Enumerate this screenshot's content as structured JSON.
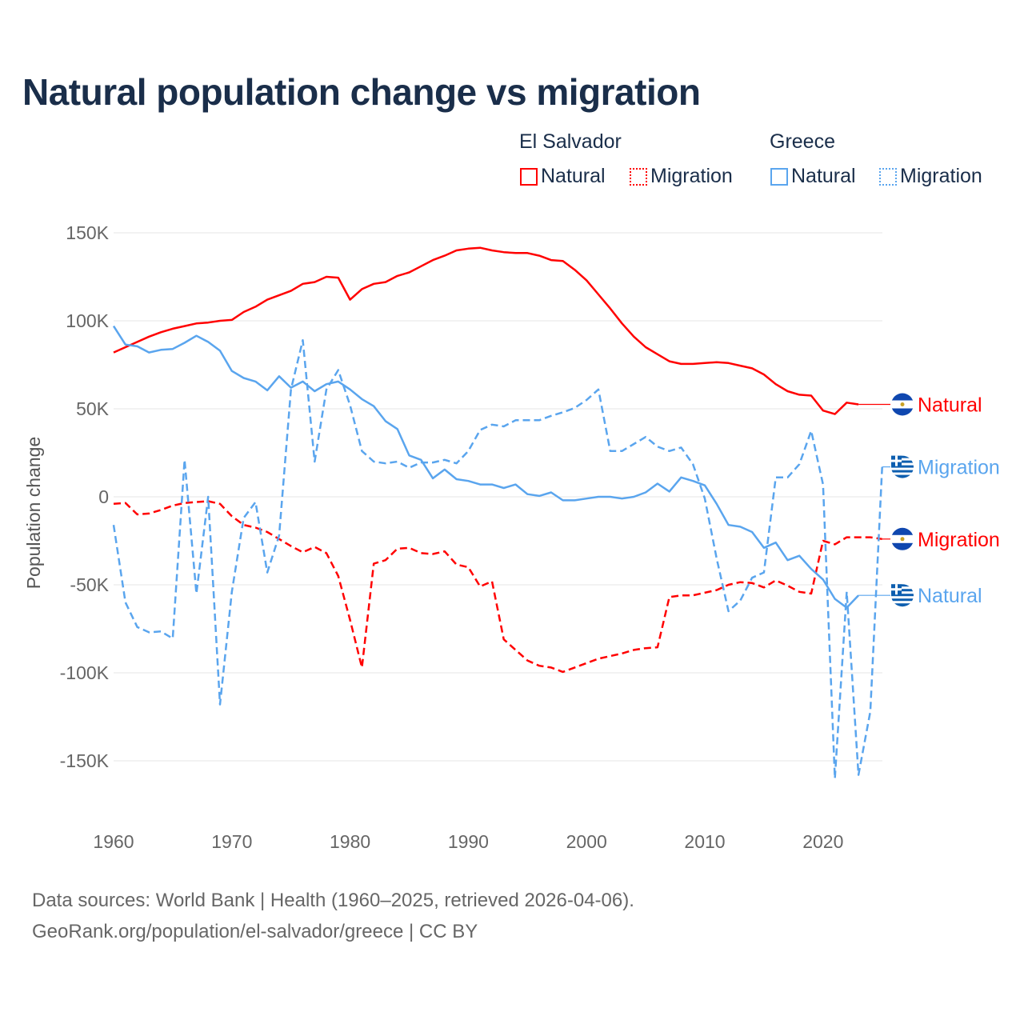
{
  "title": "Natural population change vs migration",
  "legend": {
    "groups": [
      {
        "name": "El Salvador",
        "items": [
          "Natural",
          "Migration"
        ],
        "color": "#ff0000"
      },
      {
        "name": "Greece",
        "items": [
          "Natural",
          "Migration"
        ],
        "color": "#5aa5ee"
      }
    ]
  },
  "footer": {
    "line1": "Data sources: World Bank | Health (1960–2025, retrieved 2026-04-06).",
    "line2": "GeoRank.org/population/el-salvador/greece | CC BY"
  },
  "chart_data": {
    "type": "line",
    "title": "Natural population change vs migration",
    "xlabel": "",
    "ylabel": "Population change",
    "xlim": [
      1960,
      2025
    ],
    "ylim": [
      -170,
      160
    ],
    "y_unit": "thousands",
    "yticks": [
      150,
      100,
      50,
      0,
      -50,
      -100,
      -150
    ],
    "ytick_labels": [
      "150K",
      "100K",
      "50K",
      "0",
      "-50K",
      "-100K",
      "-150K"
    ],
    "xticks": [
      1960,
      1970,
      1980,
      1990,
      2000,
      2010,
      2020
    ],
    "xtick_labels": [
      "1960",
      "1970",
      "1980",
      "1990",
      "2000",
      "2010",
      "2020"
    ],
    "grid": true,
    "series": [
      {
        "name": "El Salvador Natural",
        "label": "Natural",
        "color": "#ff0000",
        "dash": false,
        "start": 1960,
        "values": [
          82,
          85,
          88,
          91,
          93.5,
          95.5,
          97,
          98.5,
          99,
          100,
          100.5,
          105,
          108,
          112,
          114.5,
          117,
          121,
          122,
          125,
          124.5,
          112,
          118,
          121,
          122,
          125.5,
          127.5,
          131,
          134.5,
          137,
          140,
          141,
          141.5,
          140,
          139,
          138.5,
          138.5,
          137,
          134.5,
          134,
          129,
          123,
          115,
          107,
          98.5,
          91,
          85,
          81,
          77,
          75.5,
          75.5,
          76,
          76.5,
          76,
          74.5,
          73,
          69.5,
          64,
          60,
          58,
          57.5,
          49,
          47,
          53.5,
          52.5
        ]
      },
      {
        "name": "El Salvador Migration",
        "label": "Migration",
        "color": "#ff0000",
        "dash": true,
        "start": 1960,
        "values": [
          -4,
          -3.5,
          -10,
          -9.5,
          -7.5,
          -5,
          -3.5,
          -3,
          -2.5,
          -4,
          -11,
          -16,
          -17.5,
          -20,
          -24,
          -28,
          -31.5,
          -28.5,
          -32,
          -45,
          -70,
          -97,
          -38,
          -36,
          -29.5,
          -29,
          -32,
          -32.5,
          -31,
          -38.5,
          -40,
          -51,
          -48,
          -81,
          -87,
          -93,
          -96,
          -97,
          -99.5,
          -97,
          -94.5,
          -92,
          -90.5,
          -89,
          -87,
          -86,
          -85.5,
          -57,
          -56,
          -56,
          -54.5,
          -53,
          -50,
          -48.5,
          -49,
          -51.5,
          -47.5,
          -50.5,
          -54,
          -55,
          -25,
          -27,
          -23,
          -23,
          -23,
          -24
        ]
      },
      {
        "name": "Greece Natural",
        "label": "Natural",
        "color": "#5aa5ee",
        "dash": false,
        "start": 1960,
        "values": [
          97,
          86.5,
          85.5,
          82,
          83.5,
          84,
          87.5,
          91.5,
          88,
          83,
          71.5,
          67.5,
          65.5,
          60.5,
          68.5,
          62,
          65.5,
          60,
          64,
          65.5,
          61,
          55.5,
          51.5,
          43,
          38.5,
          23.5,
          21,
          10.5,
          15.5,
          10,
          9,
          7,
          7,
          5,
          7,
          1.5,
          0.5,
          2.5,
          -2,
          -2,
          -1,
          0,
          0,
          -1,
          0,
          2.5,
          7.5,
          3,
          11,
          9,
          6.5,
          -4,
          -16,
          -17,
          -20,
          -29,
          -26,
          -36,
          -33.5,
          -41,
          -47,
          -58,
          -63,
          -56
        ]
      },
      {
        "name": "Greece Migration",
        "label": "Migration",
        "color": "#5aa5ee",
        "dash": true,
        "start": 1960,
        "values": [
          -16,
          -60,
          -74,
          -77,
          -76.5,
          -80.5,
          21,
          -55,
          0,
          -118,
          -54,
          -12,
          -3,
          -43,
          -22,
          61,
          89,
          20,
          61,
          72,
          52,
          26,
          20,
          19,
          20,
          16.5,
          19.5,
          19.5,
          21,
          19,
          26,
          38,
          41,
          40,
          43.5,
          43.5,
          43.5,
          46,
          48,
          50.5,
          55,
          61,
          26,
          26,
          30,
          34,
          28.5,
          26,
          28,
          18.5,
          -1,
          -35,
          -65,
          -59,
          -46,
          -43,
          11,
          11,
          18.5,
          37.5,
          7,
          -160,
          -54,
          -158,
          -122,
          17
        ]
      }
    ],
    "end_labels": [
      {
        "series": "El Salvador Natural",
        "text": "Natural",
        "flag": "el-salvador"
      },
      {
        "series": "Greece Migration",
        "text": "Migration",
        "flag": "greece"
      },
      {
        "series": "El Salvador Migration",
        "text": "Migration",
        "flag": "el-salvador"
      },
      {
        "series": "Greece Natural",
        "text": "Natural",
        "flag": "greece"
      }
    ]
  }
}
